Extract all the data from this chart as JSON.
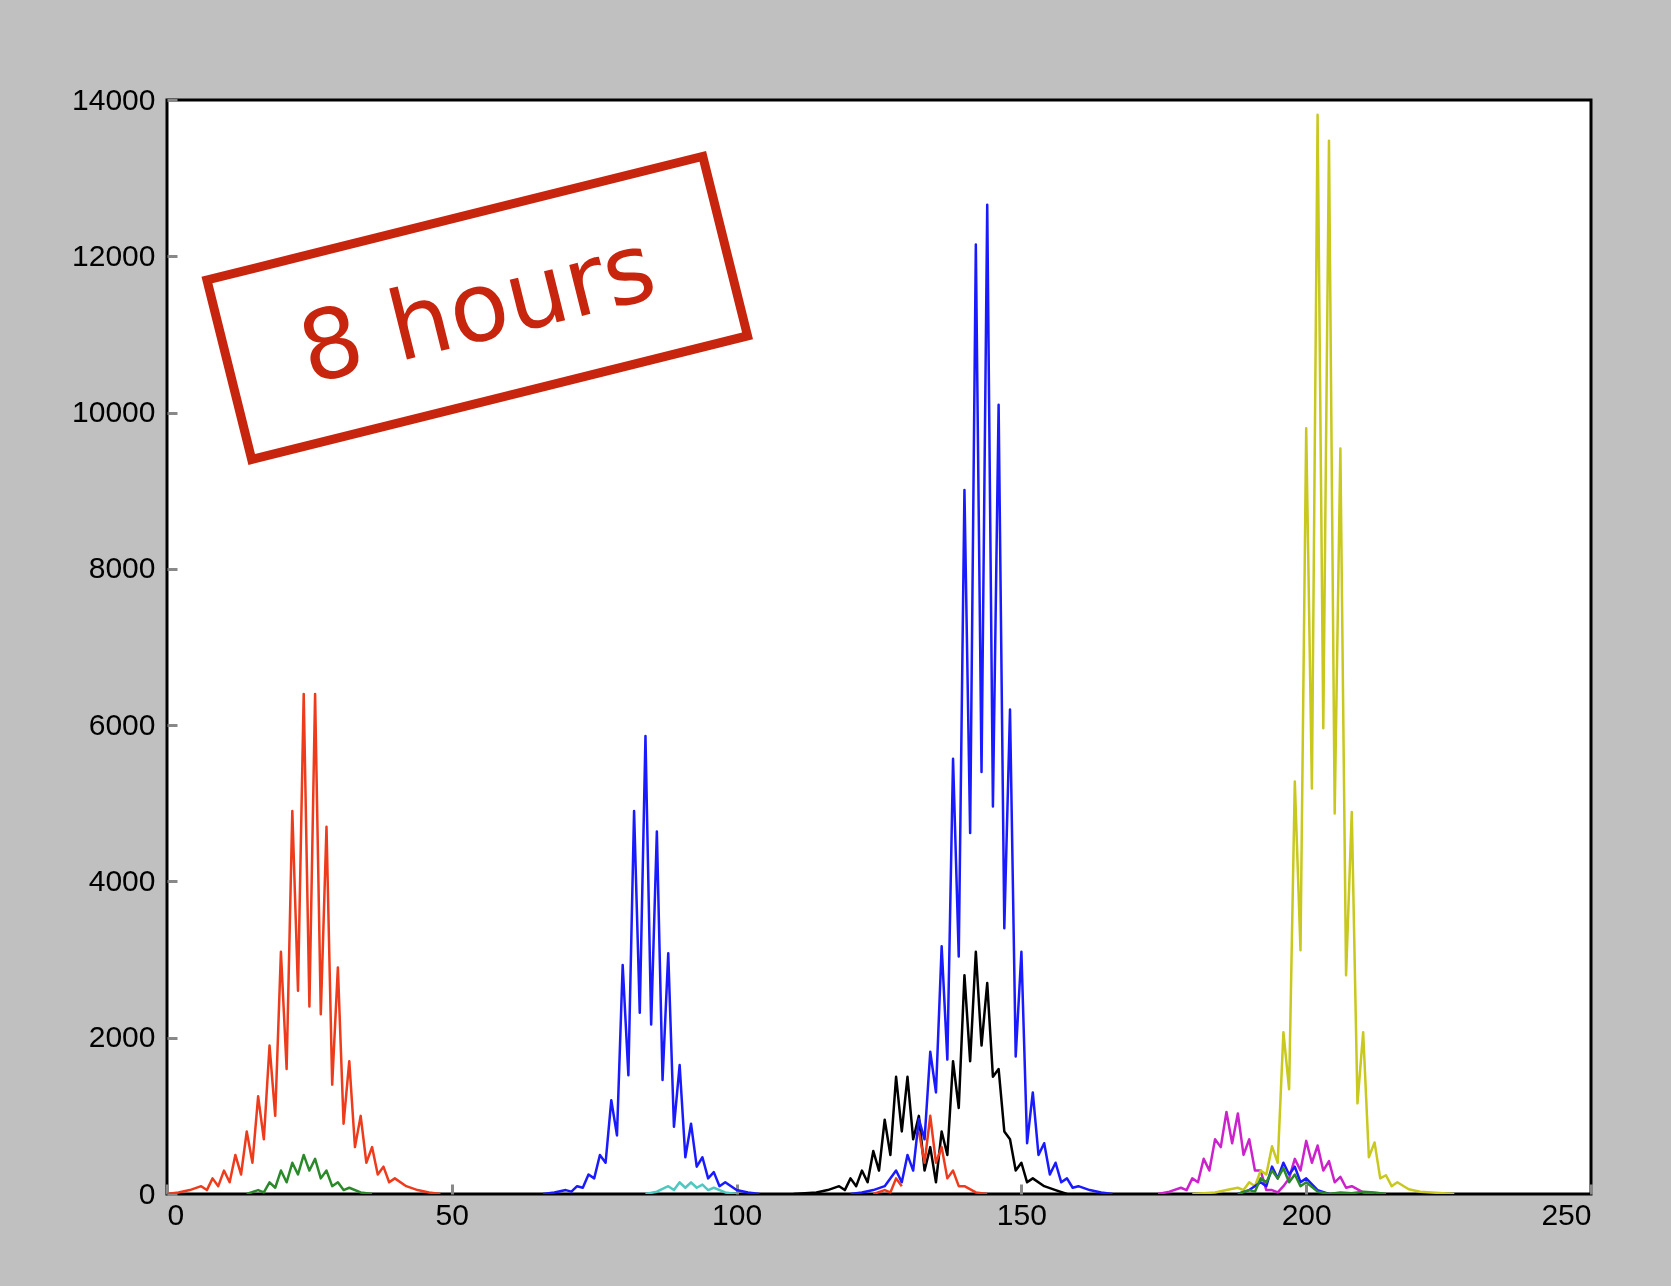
{
  "chart_data": {
    "type": "line",
    "annotations": [
      "8 hours"
    ],
    "xlim": [
      0,
      250
    ],
    "xticks": [
      0,
      50,
      100,
      150,
      200,
      250
    ],
    "ylim": [
      0,
      14000
    ],
    "yticks": [
      0,
      2000,
      4000,
      6000,
      8000,
      10000,
      12000,
      14000
    ],
    "series": [
      {
        "color": "#ee3b1b",
        "x": [
          0,
          2,
          4,
          6,
          7,
          8,
          9,
          10,
          11,
          12,
          13,
          14,
          15,
          16,
          17,
          18,
          19,
          20,
          21,
          22,
          23,
          24,
          25,
          26,
          27,
          28,
          29,
          30,
          31,
          32,
          33,
          34,
          35,
          36,
          37,
          38,
          39,
          40,
          42,
          44,
          46,
          48
        ],
        "values": [
          0,
          20,
          50,
          100,
          50,
          200,
          100,
          300,
          150,
          500,
          250,
          800,
          400,
          1250,
          700,
          1900,
          1000,
          3100,
          1600,
          4900,
          2600,
          6400,
          2400,
          6400,
          2300,
          4700,
          1400,
          2900,
          900,
          1700,
          600,
          1000,
          400,
          600,
          250,
          350,
          150,
          200,
          100,
          50,
          20,
          0
        ]
      },
      {
        "color": "#2a8a2a",
        "x": [
          14,
          16,
          17,
          18,
          19,
          20,
          21,
          22,
          23,
          24,
          25,
          26,
          27,
          28,
          29,
          30,
          31,
          32,
          34,
          36
        ],
        "values": [
          0,
          50,
          20,
          150,
          80,
          300,
          150,
          400,
          250,
          500,
          300,
          450,
          200,
          300,
          100,
          150,
          50,
          80,
          20,
          0
        ]
      },
      {
        "color": "#1a1aff",
        "x": [
          66,
          68,
          70,
          71,
          72,
          73,
          74,
          75,
          76,
          77,
          78,
          79,
          80,
          81,
          82,
          83,
          84,
          85,
          86,
          87,
          88,
          89,
          90,
          91,
          92,
          93,
          94,
          95,
          96,
          97,
          98,
          100,
          102,
          104
        ],
        "values": [
          0,
          20,
          50,
          30,
          100,
          80,
          250,
          200,
          500,
          400,
          1200,
          750,
          2930,
          1520,
          4900,
          2320,
          5860,
          2170,
          4640,
          1460,
          3080,
          860,
          1650,
          470,
          900,
          350,
          470,
          200,
          280,
          100,
          150,
          50,
          20,
          0
        ]
      },
      {
        "color": "#4cc8c0",
        "x": [
          84,
          86,
          88,
          89,
          90,
          91,
          92,
          93,
          94,
          95,
          96,
          98,
          100
        ],
        "values": [
          0,
          30,
          100,
          50,
          150,
          80,
          150,
          80,
          120,
          50,
          80,
          20,
          0
        ]
      },
      {
        "color": "#000000",
        "x": [
          110,
          114,
          116,
          118,
          119,
          120,
          121,
          122,
          123,
          124,
          125,
          126,
          127,
          128,
          129,
          130,
          131,
          132,
          133,
          134,
          135,
          136,
          137,
          138,
          139,
          140,
          141,
          142,
          143,
          144,
          145,
          146,
          147,
          148,
          149,
          150,
          151,
          152,
          154,
          156,
          158
        ],
        "values": [
          0,
          20,
          50,
          100,
          50,
          200,
          100,
          300,
          150,
          550,
          300,
          950,
          500,
          1500,
          800,
          1500,
          700,
          1000,
          300,
          600,
          150,
          800,
          500,
          1700,
          1100,
          2800,
          1700,
          3100,
          1900,
          2700,
          1500,
          1600,
          800,
          700,
          300,
          400,
          150,
          200,
          100,
          50,
          0
        ]
      },
      {
        "color": "#ee3b1b",
        "x": [
          124,
          126,
          127,
          128,
          129,
          130,
          131,
          132,
          133,
          134,
          135,
          136,
          137,
          138,
          139,
          140,
          142,
          144
        ],
        "values": [
          0,
          50,
          20,
          200,
          100,
          null,
          null,
          800,
          400,
          1000,
          400,
          600,
          200,
          300,
          100,
          100,
          20,
          0
        ]
      },
      {
        "color": "#1a1aff",
        "x": [
          120,
          122,
          124,
          126,
          128,
          129,
          130,
          131,
          132,
          133,
          134,
          135,
          136,
          137,
          138,
          139,
          140,
          141,
          142,
          143,
          144,
          145,
          146,
          147,
          148,
          149,
          150,
          151,
          152,
          153,
          154,
          155,
          156,
          157,
          158,
          159,
          160,
          162,
          164,
          166
        ],
        "values": [
          0,
          20,
          50,
          100,
          300,
          150,
          500,
          300,
          960,
          700,
          1820,
          1300,
          3170,
          1720,
          5570,
          3040,
          9010,
          4620,
          12150,
          5400,
          12660,
          4960,
          10100,
          3400,
          6200,
          1760,
          3100,
          650,
          1300,
          500,
          650,
          250,
          400,
          150,
          200,
          80,
          100,
          50,
          20,
          0
        ]
      },
      {
        "color": "#cc22cc",
        "x": [
          174,
          176,
          178,
          179,
          180,
          181,
          182,
          183,
          184,
          185,
          186,
          187,
          188,
          189,
          190,
          191,
          192,
          193,
          194,
          195,
          196,
          197,
          198,
          199,
          200,
          201,
          202,
          203,
          204,
          205,
          206,
          207,
          208,
          210,
          212
        ],
        "values": [
          0,
          30,
          80,
          50,
          200,
          150,
          450,
          300,
          700,
          600,
          1050,
          650,
          1030,
          500,
          700,
          300,
          300,
          50,
          50,
          20,
          100,
          200,
          450,
          300,
          680,
          400,
          620,
          300,
          420,
          150,
          220,
          80,
          100,
          20,
          0
        ]
      },
      {
        "color": "#c8c81e",
        "x": [
          180,
          184,
          186,
          188,
          189,
          190,
          191,
          192,
          193,
          194,
          195,
          196,
          197,
          198,
          199,
          200,
          201,
          202,
          203,
          204,
          205,
          206,
          207,
          208,
          209,
          210,
          211,
          212,
          213,
          214,
          215,
          216,
          218,
          220,
          222,
          226
        ],
        "values": [
          0,
          20,
          50,
          80,
          50,
          150,
          100,
          300,
          250,
          610,
          400,
          2070,
          1340,
          5280,
          3120,
          9800,
          5190,
          13810,
          5960,
          13480,
          4870,
          9540,
          2800,
          4890,
          1160,
          2070,
          470,
          660,
          200,
          240,
          100,
          150,
          60,
          30,
          20,
          0
        ]
      },
      {
        "color": "#1a1aff",
        "x": [
          188,
          190,
          192,
          193,
          194,
          195,
          196,
          197,
          198,
          199,
          200,
          202,
          204
        ],
        "values": [
          0,
          50,
          150,
          100,
          350,
          200,
          400,
          250,
          350,
          150,
          200,
          50,
          0
        ]
      },
      {
        "color": "#2a8a2a",
        "x": [
          188,
          190,
          191,
          192,
          193,
          194,
          195,
          196,
          197,
          198,
          199,
          200,
          202,
          204,
          206,
          208,
          210,
          212,
          214
        ],
        "values": [
          0,
          50,
          30,
          200,
          150,
          300,
          200,
          330,
          150,
          250,
          100,
          150,
          30,
          0,
          20,
          10,
          30,
          20,
          0
        ]
      }
    ]
  }
}
